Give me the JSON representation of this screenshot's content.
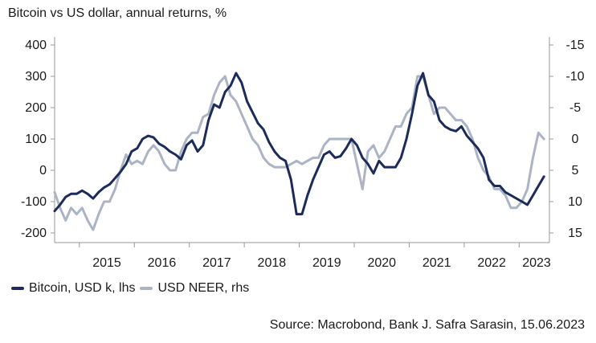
{
  "chart_data": {
    "type": "line",
    "title": "Bitcoin vs US dollar, annual returns, %",
    "source": "Source: Macrobond, Bank J. Safra Sarasin, 15.06.2023",
    "x_tick_labels": [
      "2015",
      "2016",
      "2017",
      "2018",
      "2019",
      "2020",
      "2021",
      "2022",
      "2023"
    ],
    "x_tick_values": [
      2015,
      2016,
      2017,
      2018,
      2019,
      2020,
      2021,
      2022,
      2023
    ],
    "xlim": [
      2014.55,
      2023.55
    ],
    "y_left": {
      "ylim": [
        -200,
        400
      ],
      "ticks": [
        -200,
        -100,
        0,
        100,
        200,
        300,
        400
      ],
      "tick_labels": [
        "-200",
        "-100",
        "0",
        "100",
        "200",
        "300",
        "400"
      ]
    },
    "y_right": {
      "ylim": [
        15,
        -15
      ],
      "inverted": true,
      "ticks": [
        -15,
        -10,
        -5,
        0,
        5,
        10,
        15
      ],
      "tick_labels": [
        "-15",
        "-10",
        "-5",
        "0",
        "5",
        "10",
        "15"
      ]
    },
    "colors": {
      "bitcoin": "#1c2b5a",
      "usd": "#aab4c4",
      "axis": "#999999"
    },
    "series": [
      {
        "name": "Bitcoin, USD k, lhs",
        "axis": "left",
        "x": [
          2014.55,
          2014.65,
          2014.75,
          2014.85,
          2014.95,
          2015.05,
          2015.15,
          2015.25,
          2015.35,
          2015.45,
          2015.55,
          2015.65,
          2015.75,
          2015.85,
          2015.95,
          2016.05,
          2016.15,
          2016.25,
          2016.35,
          2016.45,
          2016.55,
          2016.65,
          2016.75,
          2016.85,
          2016.95,
          2017.05,
          2017.15,
          2017.25,
          2017.35,
          2017.45,
          2017.55,
          2017.65,
          2017.75,
          2017.85,
          2017.95,
          2018.05,
          2018.15,
          2018.25,
          2018.35,
          2018.45,
          2018.55,
          2018.65,
          2018.75,
          2018.85,
          2018.95,
          2019.05,
          2019.15,
          2019.25,
          2019.35,
          2019.45,
          2019.55,
          2019.65,
          2019.75,
          2019.85,
          2019.95,
          2020.05,
          2020.15,
          2020.25,
          2020.35,
          2020.45,
          2020.55,
          2020.65,
          2020.75,
          2020.85,
          2020.95,
          2021.05,
          2021.15,
          2021.25,
          2021.35,
          2021.45,
          2021.55,
          2021.65,
          2021.75,
          2021.85,
          2021.95,
          2022.05,
          2022.15,
          2022.25,
          2022.35,
          2022.45,
          2022.55,
          2022.65,
          2022.75,
          2022.85,
          2022.95,
          2023.05,
          2023.15,
          2023.25,
          2023.35,
          2023.45
        ],
        "values": [
          -130,
          -110,
          -85,
          -75,
          -75,
          -65,
          -75,
          -90,
          -70,
          -55,
          -45,
          -25,
          -5,
          20,
          60,
          70,
          100,
          110,
          105,
          85,
          75,
          60,
          50,
          35,
          80,
          95,
          60,
          80,
          160,
          210,
          200,
          250,
          270,
          310,
          280,
          220,
          185,
          150,
          130,
          90,
          60,
          40,
          30,
          -30,
          -140,
          -140,
          -80,
          -30,
          10,
          50,
          60,
          40,
          45,
          70,
          100,
          80,
          40,
          20,
          -10,
          30,
          10,
          10,
          10,
          40,
          100,
          180,
          270,
          310,
          240,
          220,
          160,
          140,
          130,
          125,
          140,
          110,
          90,
          70,
          40,
          -30,
          -50,
          -50,
          -70,
          -80,
          -90,
          -100,
          -110,
          -80,
          -50,
          -20
        ]
      },
      {
        "name": "USD NEER, rhs",
        "axis": "right",
        "x": [
          2014.55,
          2014.65,
          2014.75,
          2014.85,
          2014.95,
          2015.05,
          2015.15,
          2015.25,
          2015.35,
          2015.45,
          2015.55,
          2015.65,
          2015.75,
          2015.85,
          2015.95,
          2016.05,
          2016.15,
          2016.25,
          2016.35,
          2016.45,
          2016.55,
          2016.65,
          2016.75,
          2016.85,
          2016.95,
          2017.05,
          2017.15,
          2017.25,
          2017.35,
          2017.45,
          2017.55,
          2017.65,
          2017.75,
          2017.85,
          2017.95,
          2018.05,
          2018.15,
          2018.25,
          2018.35,
          2018.45,
          2018.55,
          2018.65,
          2018.75,
          2018.85,
          2018.95,
          2019.05,
          2019.15,
          2019.25,
          2019.35,
          2019.45,
          2019.55,
          2019.65,
          2019.75,
          2019.85,
          2019.95,
          2020.05,
          2020.15,
          2020.25,
          2020.35,
          2020.45,
          2020.55,
          2020.65,
          2020.75,
          2020.85,
          2020.95,
          2021.05,
          2021.15,
          2021.25,
          2021.35,
          2021.45,
          2021.55,
          2021.65,
          2021.75,
          2021.85,
          2021.95,
          2022.05,
          2022.15,
          2022.25,
          2022.35,
          2022.45,
          2022.55,
          2022.65,
          2022.75,
          2022.85,
          2022.95,
          2023.05,
          2023.15,
          2023.25,
          2023.35,
          2023.45
        ],
        "values": [
          8.5,
          11,
          13,
          11,
          12,
          11,
          13,
          14.5,
          12,
          10,
          10,
          8,
          5,
          2.5,
          4,
          3.5,
          4,
          2,
          1,
          2,
          4,
          5,
          5,
          2,
          0,
          -1,
          -1,
          -3.5,
          -4,
          -7,
          -9,
          -10,
          -7,
          -6,
          -4,
          -2,
          0,
          1,
          3,
          4,
          4.5,
          4.5,
          4.5,
          4,
          3.5,
          4,
          3.5,
          3,
          3,
          1,
          0,
          0,
          0,
          0,
          0,
          4,
          8,
          2,
          1,
          3,
          2,
          0,
          -2,
          -2,
          -4,
          -5,
          -10,
          -10,
          -7,
          -4,
          -5,
          -5,
          -4,
          -3,
          -3,
          -2,
          0,
          3,
          5,
          6,
          8,
          8,
          9,
          11,
          11,
          10,
          8,
          3,
          -1,
          0
        ]
      }
    ]
  }
}
